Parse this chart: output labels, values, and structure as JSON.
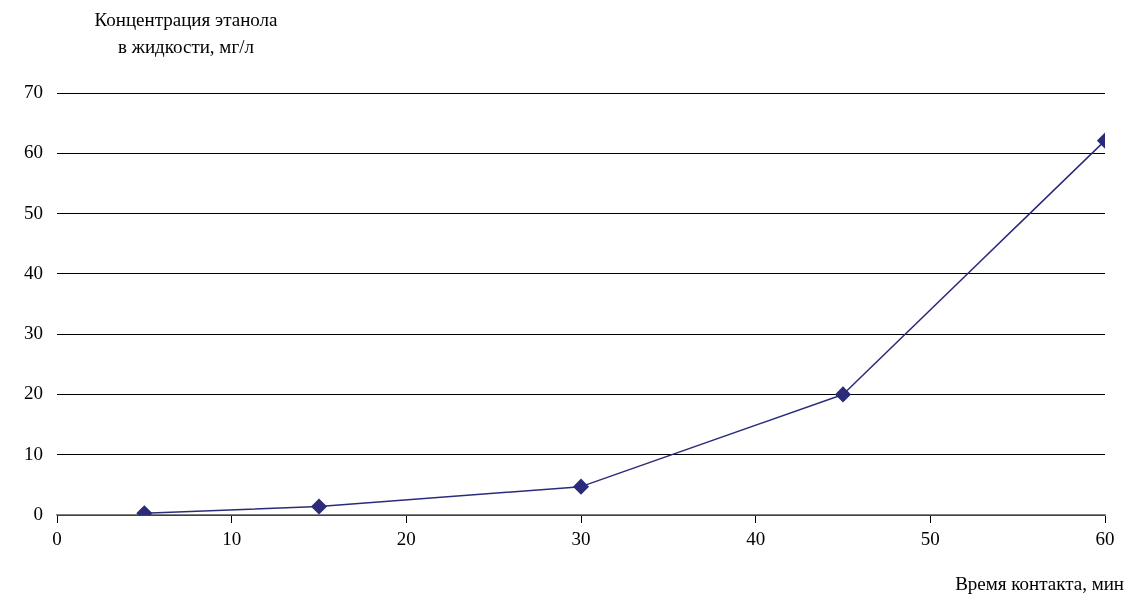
{
  "chart_data": {
    "type": "line",
    "ylabel": "Концентрация этанола\nв жидкости, мг/л",
    "xlabel": "Время контакта, мин",
    "x": [
      5,
      15,
      30,
      45,
      60
    ],
    "series": [
      {
        "color": "#2b2b7a",
        "values": [
          0.3,
          1.4,
          4.7,
          20,
          62.1
        ]
      }
    ],
    "xlim": [
      0,
      60
    ],
    "xticks": [
      0,
      10,
      20,
      30,
      40,
      50,
      60
    ],
    "ylim": [
      0,
      70
    ],
    "yticks": [
      0,
      10,
      20,
      30,
      40,
      50,
      60,
      70
    ],
    "grid": "y",
    "legend": false,
    "marker": "diamond",
    "line_style": "solid"
  }
}
